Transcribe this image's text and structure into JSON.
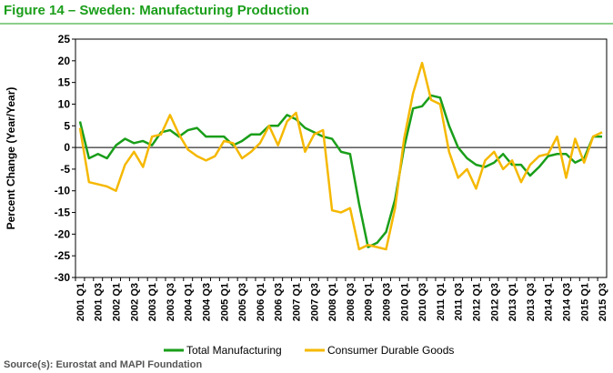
{
  "chart_data": {
    "type": "line",
    "title": "Figure 14 – Sweden: Manufacturing Production",
    "y_label": "Percent Change (Year/Year)",
    "source": "Source(s): Eurostat and MAPI Foundation",
    "categories": [
      "2001 Q1",
      null,
      "2001 Q3",
      null,
      "2002 Q1",
      null,
      "2002 Q3",
      null,
      "2003 Q1",
      null,
      "2003 Q3",
      null,
      "2004 Q1",
      null,
      "2004 Q3",
      null,
      "2005 Q1",
      null,
      "2005 Q3",
      null,
      "2006 Q1",
      null,
      "2006 Q3",
      null,
      "2007 Q1",
      null,
      "2007 Q3",
      null,
      "2008 Q1",
      null,
      "2008 Q3",
      null,
      "2009 Q1",
      null,
      "2009 Q3",
      null,
      "2010 Q1",
      null,
      "2010 Q3",
      null,
      "2011 Q1",
      null,
      "2011 Q3",
      null,
      "2012 Q1",
      null,
      "2012 Q3",
      null,
      "2013 Q1",
      null,
      "2013 Q3",
      null,
      "2014 Q1",
      null,
      "2014 Q3",
      null,
      "2015 Q1",
      null,
      "2015 Q3"
    ],
    "series": [
      {
        "name": "Total Manufacturing",
        "color": "#1a9e1a",
        "values": [
          6,
          -2.5,
          -1.5,
          -2.5,
          0.5,
          2,
          1,
          1.5,
          0.5,
          3.5,
          4,
          2.5,
          4,
          4.5,
          2.5,
          2.5,
          2.5,
          0.5,
          1.5,
          3,
          3,
          5,
          5,
          7.5,
          6.5,
          4.5,
          3.5,
          2.5,
          2,
          -1,
          -1.5,
          -13,
          -23,
          -22,
          -19.5,
          -12,
          0,
          9,
          9.5,
          12,
          11.5,
          5,
          0,
          -2.5,
          -4,
          -4.5,
          -3.5,
          -1.5,
          -4,
          -4,
          -6.5,
          -4.5,
          -2,
          -1.5,
          -1.5,
          -3.5,
          -2.5,
          2.5,
          2.5
        ]
      },
      {
        "name": "Consumer Durable Goods",
        "color": "#f5b800",
        "values": [
          4.5,
          -8,
          -8.5,
          -9,
          -10,
          -4,
          -1,
          -4.5,
          2.5,
          3,
          7.5,
          3,
          -0.5,
          -2,
          -3,
          -2,
          1.5,
          1,
          -2.5,
          -1,
          1,
          5,
          0.5,
          6,
          8,
          -1,
          3,
          4,
          -14.5,
          -15,
          -14,
          -23.5,
          -22.5,
          -23,
          -23.5,
          -14,
          2,
          12.5,
          19.5,
          11,
          10,
          -1,
          -7,
          -5,
          -9.5,
          -3,
          -1,
          -5,
          -3,
          -8,
          -4,
          -2,
          -1.5,
          2.5,
          -7,
          2,
          -3.5,
          2.5,
          3.5
        ]
      }
    ],
    "ylim": [
      -30,
      25
    ],
    "yticks": [
      -30,
      -25,
      -20,
      -15,
      -10,
      -5,
      0,
      5,
      10,
      15,
      20,
      25
    ],
    "grid": false,
    "legend": "bottom"
  }
}
